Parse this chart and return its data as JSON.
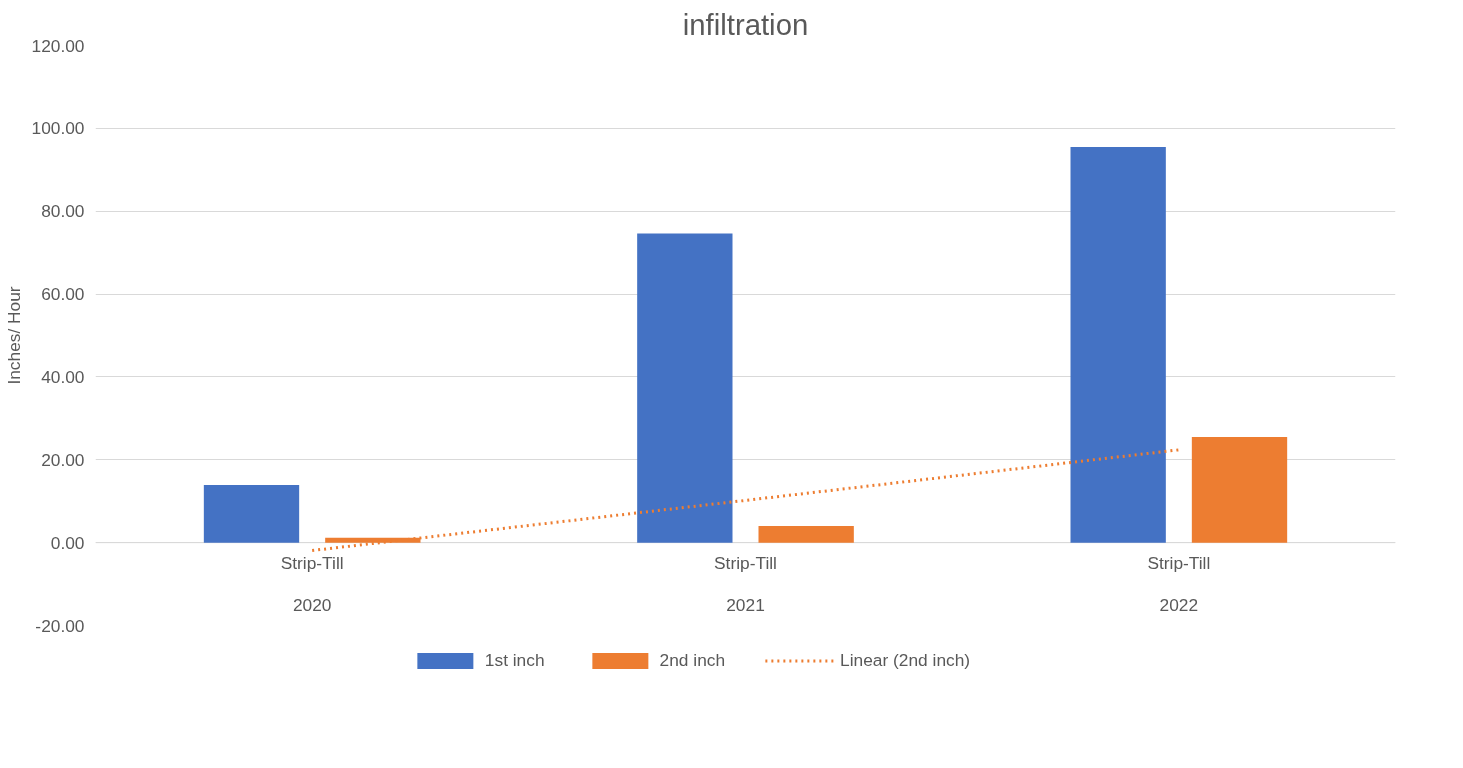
{
  "chart_data": {
    "type": "bar",
    "title": "infiltration",
    "ylabel": "Inches/ Hour",
    "categories": [
      "Strip-Till\n2020",
      "Strip-Till\n2021",
      "Strip-Till\n2022"
    ],
    "series": [
      {
        "name": "1st inch",
        "color": "#4472c4",
        "values": [
          13.9,
          74.6,
          95.5
        ]
      },
      {
        "name": "2nd inch",
        "color": "#ed7d31",
        "values": [
          1.2,
          4.0,
          25.5
        ]
      },
      {
        "name": "Linear (2nd inch)",
        "type": "line",
        "line_style": "dotted",
        "color": "#ed7d31",
        "values": [
          -1.9,
          10.2,
          22.4
        ]
      }
    ],
    "ylim": [
      -20,
      120
    ],
    "yticks": [
      {
        "value": -20,
        "label": "-20.00"
      },
      {
        "value": 0,
        "label": "0.00"
      },
      {
        "value": 20,
        "label": "20.00"
      },
      {
        "value": 40,
        "label": "40.00"
      },
      {
        "value": 60,
        "label": "60.00"
      },
      {
        "value": 80,
        "label": "80.00"
      },
      {
        "value": 100,
        "label": "100.00"
      },
      {
        "value": 120,
        "label": "120.00"
      }
    ],
    "grid": "y",
    "legend": "bottom"
  }
}
